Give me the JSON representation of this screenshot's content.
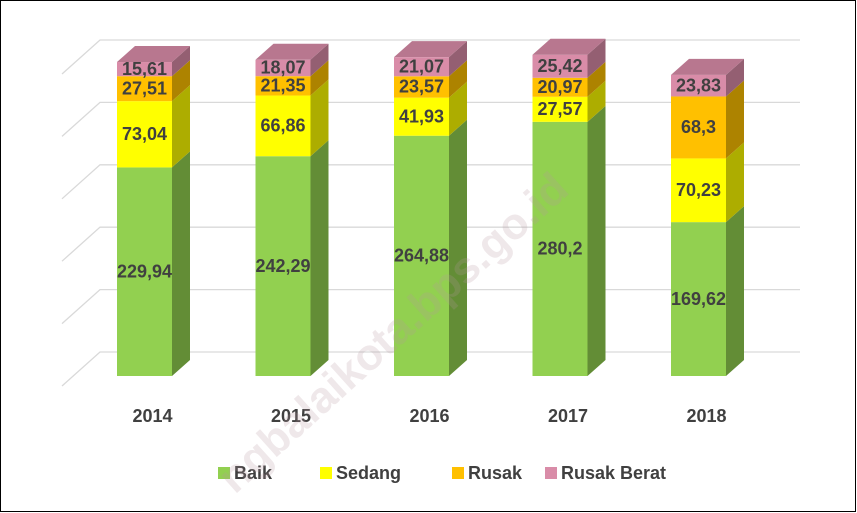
{
  "chart_data": {
    "type": "bar3d_stacked",
    "categories": [
      "2014",
      "2015",
      "2016",
      "2017",
      "2018"
    ],
    "series": [
      {
        "name": "Baik",
        "color": "#92d050",
        "values": [
          229.94,
          242.29,
          264.88,
          280.2,
          169.62
        ],
        "value_labels": [
          "229,94",
          "242,29",
          "264,88",
          "280,2",
          "169,62"
        ]
      },
      {
        "name": "Sedang",
        "color": "#ffff00",
        "values": [
          73.04,
          66.86,
          41.93,
          27.57,
          70.23
        ],
        "value_labels": [
          "73,04",
          "66,86",
          "41,93",
          "27,57",
          "70,23"
        ]
      },
      {
        "name": "Rusak",
        "color": "#ffc000",
        "values": [
          27.51,
          21.35,
          23.57,
          20.97,
          68.3
        ],
        "value_labels": [
          "27,51",
          "21,35",
          "23,57",
          "20,97",
          "68,3"
        ]
      },
      {
        "name": "Rusak Berat",
        "color": "#d98ca8",
        "values": [
          15.61,
          18.07,
          21.07,
          25.42,
          23.83
        ],
        "value_labels": [
          "15,61",
          "18,07",
          "21,07",
          "25,42",
          "23,83"
        ]
      }
    ],
    "ylim": [
      0,
      350
    ],
    "yticks": [
      0,
      70,
      140,
      210,
      280,
      350
    ],
    "grid": true,
    "legend": "bottom",
    "watermark": "ngbalaikota.bps.go.id"
  }
}
